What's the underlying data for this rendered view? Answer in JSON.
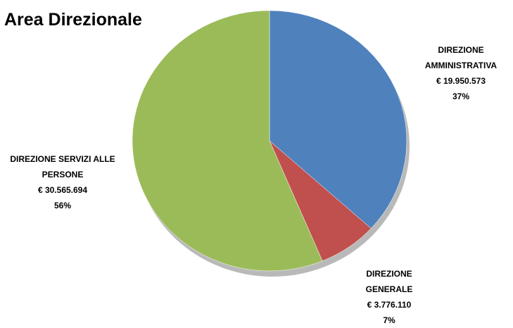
{
  "chart_data": {
    "type": "pie",
    "title": "Area Direzionale",
    "categories": [
      "DIREZIONE AMMINISTRATIVA",
      "DIREZIONE GENERALE",
      "DIREZIONE SERVIZI ALLE PERSONE"
    ],
    "values": [
      19950573,
      3776110,
      30565694
    ],
    "value_labels": [
      "€ 19.950.573",
      "€ 3.776.110",
      "€ 30.565.694"
    ],
    "percentages": [
      37,
      7,
      56
    ],
    "percentage_labels": [
      "37%",
      "7%",
      "56%"
    ],
    "colors": [
      "#4f81bd",
      "#c0504d",
      "#9bbb59"
    ]
  }
}
